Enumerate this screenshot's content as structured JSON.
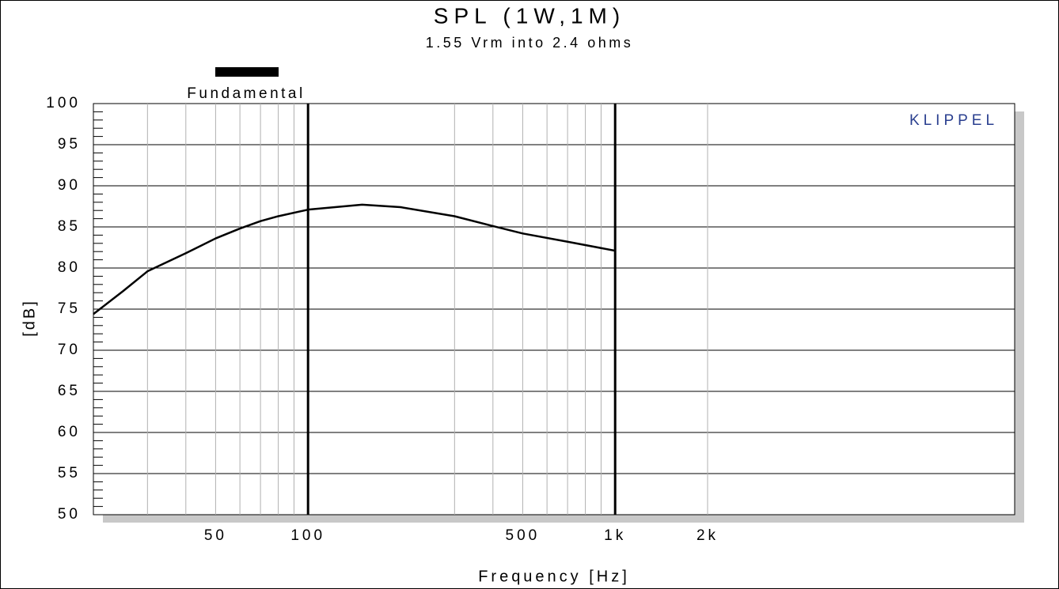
{
  "chart_data": {
    "type": "line",
    "title": "SPL (1W,1M)",
    "subtitle": "1.55 Vrm into 2.4 ohms",
    "watermark": "KLIPPEL",
    "x_label": "Frequency [Hz]",
    "y_label": "[dB]",
    "x": [
      20,
      25,
      30,
      40,
      50,
      60,
      70,
      80,
      100,
      150,
      200,
      300,
      400,
      500,
      700,
      1000
    ],
    "series": [
      {
        "name": "Fundamental",
        "color": "#000000",
        "values": [
          74.4,
          77.2,
          79.6,
          81.8,
          83.6,
          84.8,
          85.7,
          86.3,
          87.1,
          87.7,
          87.4,
          86.3,
          85.1,
          84.2,
          83.2,
          82.1
        ]
      }
    ],
    "xlim": [
      20,
      20000
    ],
    "ylim": [
      50,
      100
    ],
    "log_x": true,
    "xticks": [
      50,
      100,
      500,
      {
        "value": 1000,
        "label": "1k"
      },
      {
        "value": 2000,
        "label": "2k"
      }
    ],
    "yticks": [
      50,
      55,
      60,
      65,
      70,
      75,
      80,
      85,
      90,
      95,
      100
    ],
    "x_grid": [
      30,
      40,
      50,
      60,
      70,
      80,
      90,
      300,
      400,
      500,
      600,
      700,
      800,
      900,
      2000
    ],
    "x_major_lines": [
      100,
      1000
    ],
    "y_minor_step": 1,
    "grid": true
  }
}
